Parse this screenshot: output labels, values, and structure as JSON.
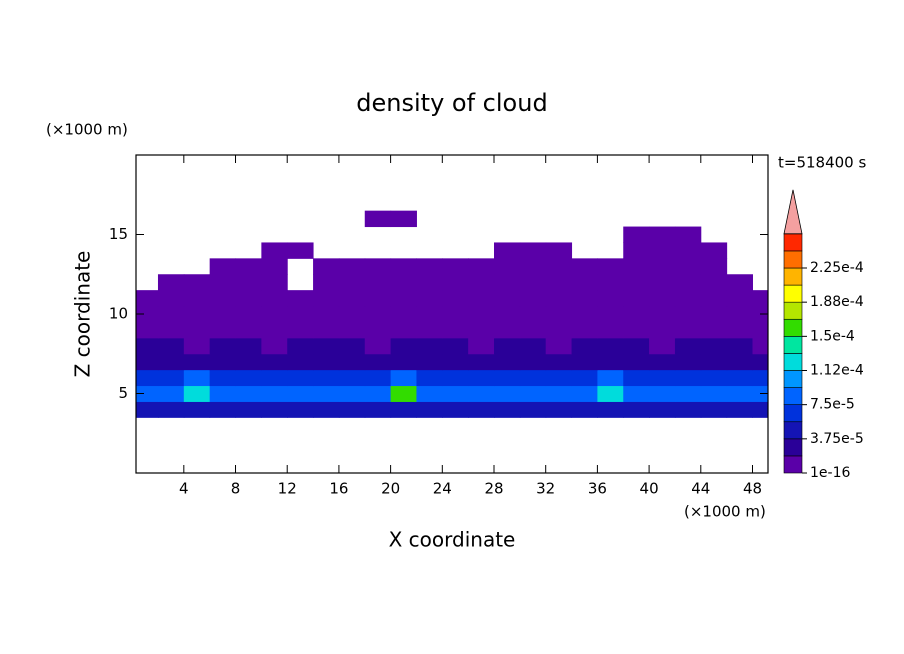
{
  "chart_data": {
    "type": "contour",
    "title": "density of cloud",
    "x_label": "X coordinate",
    "y_label": "Z coordinate",
    "x_unit": "(×1000 m)",
    "y_unit": "(×1000 m)",
    "time_label": "t=518400 s",
    "xlim": [
      0.3,
      49.2
    ],
    "ylim": [
      0,
      20
    ],
    "xticks": [
      4,
      8,
      12,
      16,
      20,
      24,
      28,
      32,
      36,
      40,
      44,
      48
    ],
    "yticks": [
      5,
      10,
      15
    ],
    "x": [
      1,
      3,
      5,
      7,
      9,
      11,
      13,
      15,
      17,
      19,
      21,
      23,
      25,
      27,
      29,
      31,
      33,
      35,
      37,
      39,
      41,
      43,
      45,
      47,
      49
    ],
    "z": [
      4,
      5,
      6,
      7,
      8,
      9,
      10,
      11,
      12,
      13,
      14,
      15,
      16
    ],
    "values": [
      [
        4e-05,
        4e-05,
        4e-05,
        4e-05,
        4e-05,
        4e-05,
        4e-05,
        4e-05,
        4e-05,
        4e-05,
        4e-05,
        4e-05,
        4e-05,
        4e-05,
        4e-05,
        4e-05,
        4e-05,
        4e-05,
        4e-05,
        4e-05,
        4e-05,
        4e-05,
        4e-05,
        4e-05,
        4e-05
      ],
      [
        9e-05,
        9e-05,
        0.00013,
        9e-05,
        8e-05,
        9e-05,
        9e-05,
        8e-05,
        9e-05,
        9e-05,
        0.00015,
        9e-05,
        8e-05,
        9e-05,
        9e-05,
        8e-05,
        9e-05,
        9e-05,
        0.00013,
        9e-05,
        9e-05,
        8e-05,
        9e-05,
        8e-05,
        9e-05
      ],
      [
        6e-05,
        6e-05,
        9e-05,
        6e-05,
        6e-05,
        6e-05,
        7e-05,
        6e-05,
        6e-05,
        6e-05,
        9e-05,
        6e-05,
        6e-05,
        6e-05,
        7e-05,
        6e-05,
        6e-05,
        6e-05,
        9e-05,
        6e-05,
        6e-05,
        6e-05,
        7e-05,
        6e-05,
        6e-05
      ],
      [
        3e-05,
        3e-05,
        3e-05,
        3e-05,
        3e-05,
        3e-05,
        3e-05,
        3e-05,
        3e-05,
        3e-05,
        3e-05,
        3e-05,
        3e-05,
        3e-05,
        3e-05,
        3e-05,
        3e-05,
        3e-05,
        3e-05,
        3e-05,
        3e-05,
        3e-05,
        3e-05,
        3e-05,
        3e-05
      ],
      [
        2e-05,
        2e-05,
        1e-05,
        2e-05,
        2e-05,
        1e-05,
        2e-05,
        2e-05,
        2e-05,
        1e-05,
        2e-05,
        2e-05,
        2e-05,
        1e-05,
        2e-05,
        2e-05,
        1e-05,
        2e-05,
        2e-05,
        2e-05,
        1e-05,
        2e-05,
        2e-05,
        2e-05,
        1e-05
      ],
      [
        1e-05,
        5e-06,
        5e-06,
        1e-05,
        5e-06,
        5e-06,
        1e-05,
        5e-06,
        5e-06,
        5e-06,
        1e-05,
        5e-06,
        5e-06,
        1e-05,
        5e-06,
        5e-06,
        1e-05,
        5e-06,
        5e-06,
        5e-06,
        1e-05,
        5e-06,
        5e-06,
        1e-05,
        5e-06
      ],
      [
        5e-06,
        5e-06,
        5e-06,
        5e-06,
        5e-06,
        5e-06,
        5e-06,
        5e-06,
        5e-06,
        5e-06,
        5e-06,
        5e-06,
        5e-06,
        5e-06,
        1e-05,
        5e-06,
        5e-06,
        5e-06,
        5e-06,
        5e-06,
        5e-06,
        5e-06,
        5e-06,
        5e-06,
        5e-06
      ],
      [
        5e-06,
        5e-06,
        5e-06,
        5e-06,
        5e-06,
        5e-06,
        5e-06,
        5e-06,
        5e-06,
        5e-06,
        5e-06,
        5e-06,
        5e-06,
        5e-06,
        5e-06,
        5e-06,
        5e-06,
        5e-06,
        5e-06,
        5e-06,
        5e-06,
        5e-06,
        5e-06,
        5e-06,
        5e-06
      ],
      [
        null,
        5e-06,
        5e-06,
        5e-06,
        5e-06,
        5e-06,
        null,
        5e-06,
        5e-06,
        5e-06,
        5e-06,
        5e-06,
        5e-06,
        5e-06,
        5e-06,
        5e-06,
        5e-06,
        5e-06,
        5e-06,
        5e-06,
        5e-06,
        5e-06,
        5e-06,
        5e-06,
        null
      ],
      [
        null,
        null,
        null,
        5e-06,
        5e-06,
        5e-06,
        null,
        5e-06,
        5e-06,
        5e-06,
        5e-06,
        5e-06,
        5e-06,
        5e-06,
        5e-06,
        5e-06,
        5e-06,
        5e-06,
        5e-06,
        5e-06,
        5e-06,
        5e-06,
        5e-06,
        null,
        null
      ],
      [
        null,
        null,
        null,
        null,
        null,
        5e-06,
        5e-06,
        null,
        null,
        null,
        null,
        null,
        null,
        null,
        5e-06,
        5e-06,
        5e-06,
        null,
        null,
        5e-06,
        5e-06,
        5e-06,
        5e-06,
        null,
        null
      ],
      [
        null,
        null,
        null,
        null,
        null,
        null,
        null,
        null,
        null,
        null,
        null,
        null,
        null,
        null,
        null,
        null,
        null,
        null,
        null,
        5e-06,
        5e-06,
        5e-06,
        null,
        null,
        null
      ],
      [
        null,
        null,
        null,
        null,
        null,
        null,
        null,
        null,
        null,
        5e-06,
        5e-06,
        null,
        null,
        null,
        null,
        null,
        null,
        null,
        null,
        null,
        null,
        null,
        null,
        null,
        null
      ]
    ],
    "colorbar": {
      "colors": [
        "#5a00a8",
        "#2a0098",
        "#1414b4",
        "#0032dc",
        "#0064ff",
        "#0096ff",
        "#00dcdc",
        "#00e6a0",
        "#32dc00",
        "#b4e600",
        "#ffff00",
        "#ffb400",
        "#ff6e00",
        "#ff2800"
      ],
      "step": 1.875e-05,
      "extend_color": "#f4a0a0",
      "ticks": [
        {
          "value": 1e-16,
          "label": "1e-16"
        },
        {
          "value": 3.75e-05,
          "label": "3.75e-5"
        },
        {
          "value": 7.5e-05,
          "label": "7.5e-5"
        },
        {
          "value": 0.0001125,
          "label": "1.12e-4"
        },
        {
          "value": 0.00015,
          "label": "1.5e-4"
        },
        {
          "value": 0.0001875,
          "label": "1.88e-4"
        },
        {
          "value": 0.000225,
          "label": "2.25e-4"
        }
      ]
    }
  }
}
